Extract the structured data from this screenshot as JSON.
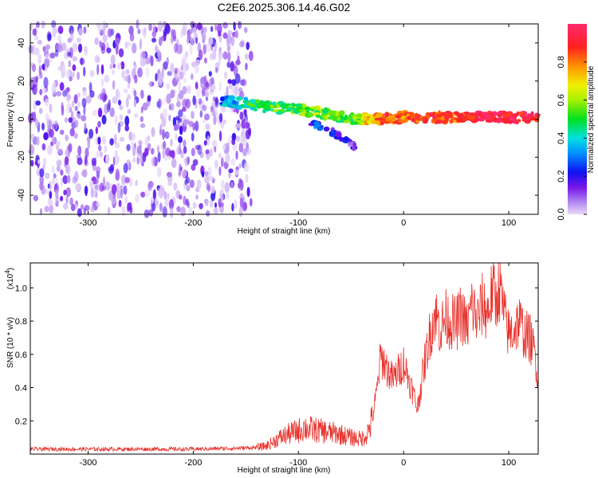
{
  "title": "C2E6.2025.306.14.46.G02",
  "chart_data": [
    {
      "type": "heatmap",
      "xlabel": "Height of straight line (km)",
      "ylabel": "Frequency (Hz)",
      "xlim": [
        -355,
        128
      ],
      "ylim": [
        -50,
        50
      ],
      "xticks": [
        -300,
        -200,
        -100,
        0,
        100
      ],
      "xtick_labels": [
        "-300",
        "-200",
        "-100",
        "0",
        "100"
      ],
      "yticks": [
        -40,
        -20,
        0,
        20,
        40
      ],
      "ytick_labels": [
        "-40",
        "-20",
        "0",
        "20",
        "40"
      ],
      "noise_region_x": [
        -355,
        -145
      ],
      "signal_track": {
        "x": [
          -175,
          -150,
          -125,
          -100,
          -75,
          -50,
          -35,
          -20,
          0,
          25,
          50,
          75,
          100,
          128
        ],
        "y": [
          10,
          8,
          6,
          5,
          3,
          0,
          0,
          0,
          1,
          1,
          1,
          1,
          1,
          1
        ],
        "amplitude": [
          0.3,
          0.45,
          0.5,
          0.55,
          0.55,
          0.5,
          0.7,
          0.85,
          0.8,
          0.9,
          0.85,
          0.95,
          0.95,
          0.9
        ]
      },
      "secondary_track": {
        "x": [
          -90,
          -70,
          -55,
          -45
        ],
        "y": [
          -2,
          -6,
          -11,
          -15
        ],
        "amplitude": [
          0.25,
          0.2,
          0.15,
          0.12
        ]
      },
      "colorbar": {
        "label": "Normalized spectral amplitude",
        "range": [
          0,
          1
        ],
        "ticks": [
          0.0,
          0.2,
          0.4,
          0.6,
          0.8
        ],
        "tick_labels": [
          "0.0",
          "0.2",
          "0.4",
          "0.6",
          "0.8"
        ]
      }
    },
    {
      "type": "line",
      "xlabel": "Height of straight line (km)",
      "ylabel": "SNR (10 * v/v)",
      "y_multiplier_label": "(x10",
      "y_multiplier_exp": "4",
      "y_multiplier_close": ")",
      "xlim": [
        -355,
        128
      ],
      "ylim": [
        0,
        1.15
      ],
      "xticks": [
        -300,
        -200,
        -100,
        0,
        100
      ],
      "xtick_labels": [
        "-300",
        "-200",
        "-100",
        "0",
        "100"
      ],
      "yticks": [
        0.2,
        0.4,
        0.6,
        0.8,
        1.0
      ],
      "ytick_labels": [
        "0.2",
        "0.4",
        "0.6",
        "0.8",
        "1.0"
      ],
      "color": "#e8312b",
      "series": [
        {
          "name": "SNR",
          "x": [
            -355,
            -300,
            -250,
            -200,
            -160,
            -140,
            -130,
            -120,
            -110,
            -100,
            -95,
            -90,
            -80,
            -70,
            -60,
            -50,
            -40,
            -35,
            -30,
            -25,
            -22,
            -18,
            -15,
            -10,
            -5,
            0,
            5,
            10,
            13,
            15,
            20,
            25,
            30,
            35,
            40,
            45,
            50,
            55,
            60,
            65,
            70,
            75,
            80,
            85,
            88,
            90,
            93,
            95,
            100,
            105,
            110,
            115,
            120,
            125,
            128
          ],
          "y": [
            0.03,
            0.03,
            0.03,
            0.03,
            0.035,
            0.04,
            0.05,
            0.09,
            0.12,
            0.14,
            0.16,
            0.15,
            0.14,
            0.13,
            0.12,
            0.1,
            0.09,
            0.12,
            0.2,
            0.4,
            0.58,
            0.55,
            0.5,
            0.45,
            0.5,
            0.55,
            0.45,
            0.35,
            0.27,
            0.35,
            0.55,
            0.72,
            0.85,
            0.75,
            0.82,
            0.8,
            0.78,
            0.85,
            0.75,
            0.9,
            0.8,
            0.9,
            0.85,
            1.0,
            0.9,
            1.02,
            0.95,
            0.85,
            0.72,
            0.75,
            0.8,
            0.72,
            0.7,
            0.6,
            0.45
          ]
        }
      ]
    }
  ]
}
